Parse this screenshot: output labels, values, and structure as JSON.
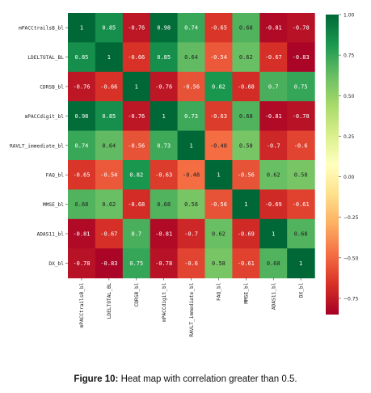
{
  "chart_data": {
    "type": "heatmap",
    "title": "",
    "variables": [
      "mPACCtrailsB_bl",
      "LDELTOTAL_BL",
      "CDRSB_bl",
      "mPACCdigit_bl",
      "RAVLT_immediate_bl",
      "FAQ_bl",
      "MMSE_bl",
      "ADAS11_bl",
      "DX_bl"
    ],
    "values": [
      [
        1,
        0.85,
        -0.76,
        0.98,
        0.74,
        -0.65,
        0.68,
        -0.81,
        -0.78
      ],
      [
        0.85,
        1,
        -0.66,
        0.85,
        0.64,
        -0.54,
        0.62,
        -0.67,
        -0.83
      ],
      [
        -0.76,
        -0.66,
        1,
        -0.76,
        -0.56,
        0.82,
        -0.68,
        0.7,
        0.75
      ],
      [
        0.98,
        0.85,
        -0.76,
        1,
        0.73,
        -0.63,
        0.68,
        -0.81,
        -0.78
      ],
      [
        0.74,
        0.64,
        -0.56,
        0.73,
        1,
        -0.48,
        0.58,
        -0.7,
        -0.6
      ],
      [
        -0.65,
        -0.54,
        0.82,
        -0.63,
        -0.48,
        1,
        -0.56,
        0.62,
        0.58
      ],
      [
        0.68,
        0.62,
        -0.68,
        0.68,
        0.58,
        -0.56,
        1,
        -0.69,
        -0.61
      ],
      [
        -0.81,
        -0.67,
        0.7,
        -0.81,
        -0.7,
        0.62,
        -0.69,
        1,
        0.68
      ],
      [
        -0.78,
        -0.83,
        0.75,
        -0.78,
        -0.6,
        0.58,
        -0.61,
        0.68,
        1
      ]
    ],
    "vmin": -0.85,
    "vmax": 1.0,
    "colormap": [
      "#a50026",
      "#d73027",
      "#f46d43",
      "#fdae61",
      "#fee08b",
      "#ffffbf",
      "#d9ef8b",
      "#a6d96a",
      "#66bd63",
      "#1a9850",
      "#006837"
    ],
    "colorbar_ticks": [
      1.0,
      0.75,
      0.5,
      0.25,
      0.0,
      -0.25,
      -0.5,
      -0.75
    ],
    "colorbar_tick_labels": [
      "1.00",
      "0.75",
      "0.50",
      "0.25",
      "0.00",
      "−0.25",
      "−0.50",
      "−0.75"
    ],
    "annotations": true
  },
  "caption": {
    "label": "Figure 10:",
    "text": " Heat map with correlation greater than 0.5."
  }
}
